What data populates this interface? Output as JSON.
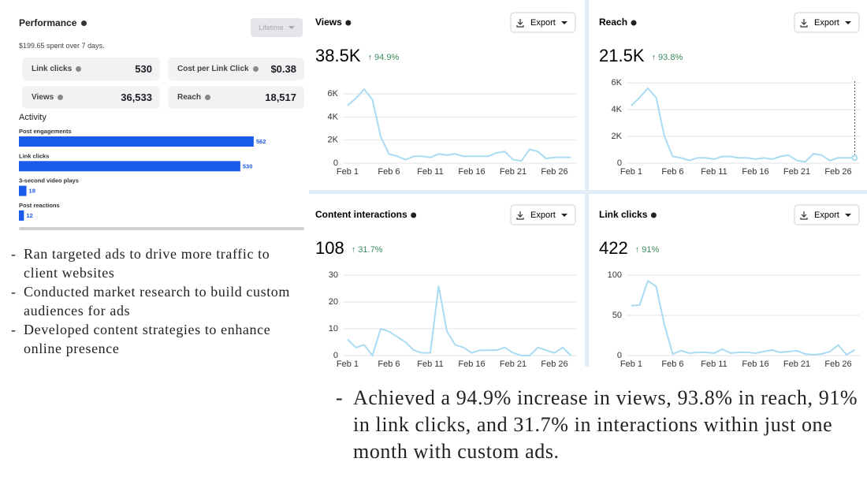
{
  "performance": {
    "title": "Performance",
    "dropdown": "Lifetime",
    "spend": "$199.65 spent over 7 days.",
    "metrics": [
      {
        "label": "Link clicks",
        "value": "530"
      },
      {
        "label": "Cost per Link Click",
        "value": "$0.38"
      },
      {
        "label": "Views",
        "value": "36,533"
      },
      {
        "label": "Reach",
        "value": "18,517"
      }
    ],
    "activity": {
      "title": "Activity",
      "categories": [
        "Post engagements",
        "Link clicks",
        "3-second video plays",
        "Post reactions"
      ],
      "values": [
        562,
        530,
        18,
        12
      ],
      "color": "#1b5bea"
    }
  },
  "chart_data": [
    {
      "type": "line",
      "title": "Views",
      "export": "Export",
      "headline": "38.5K",
      "change": "↑ 94.9%",
      "categories": [
        "Feb 1",
        null,
        null,
        null,
        null,
        "Feb 6",
        null,
        null,
        null,
        null,
        "Feb 11",
        null,
        null,
        null,
        null,
        "Feb 16",
        null,
        null,
        null,
        null,
        "Feb 21",
        null,
        null,
        null,
        null,
        "Feb 26",
        null,
        null
      ],
      "values": [
        5000,
        5600,
        6400,
        5500,
        2300,
        800,
        600,
        300,
        600,
        600,
        500,
        800,
        700,
        800,
        600,
        600,
        600,
        600,
        900,
        1000,
        300,
        200,
        1200,
        1000,
        400,
        500,
        500,
        500
      ],
      "color": "#a9dcf3",
      "ylim": [
        0,
        7300
      ],
      "yticks": [
        0,
        {
          "value": 2000,
          "label": "2K"
        },
        {
          "value": 4000,
          "label": "4K"
        },
        {
          "value": 6000,
          "label": "6K"
        }
      ],
      "grid": true
    },
    {
      "type": "line",
      "title": "Reach",
      "export": "Export",
      "headline": "21.5K",
      "change": "↑ 93.8%",
      "categories": [
        "Feb 1",
        null,
        null,
        null,
        null,
        "Feb 6",
        null,
        null,
        null,
        null,
        "Feb 11",
        null,
        null,
        null,
        null,
        "Feb 16",
        null,
        null,
        null,
        null,
        "Feb 21",
        null,
        null,
        null,
        null,
        "Feb 26",
        null,
        null
      ],
      "values": [
        4300,
        4900,
        5600,
        4900,
        2000,
        500,
        400,
        200,
        400,
        400,
        300,
        500,
        500,
        400,
        400,
        300,
        400,
        300,
        500,
        600,
        200,
        100,
        700,
        600,
        200,
        400,
        400,
        400
      ],
      "color": "#a9dcf3",
      "ylim": [
        0,
        6300
      ],
      "yticks": [
        0,
        {
          "value": 2000,
          "label": "2K"
        },
        {
          "value": 4000,
          "label": "4K"
        },
        {
          "value": 6000,
          "label": "6K"
        }
      ],
      "grid": true
    },
    {
      "type": "line",
      "title": "Content interactions",
      "export": "Export",
      "headline": "108",
      "change": "↑ 31.7%",
      "categories": [
        "Feb 1",
        null,
        null,
        null,
        null,
        "Feb 6",
        null,
        null,
        null,
        null,
        "Feb 11",
        null,
        null,
        null,
        null,
        "Feb 16",
        null,
        null,
        null,
        null,
        "Feb 21",
        null,
        null,
        null,
        null,
        "Feb 26",
        null,
        null
      ],
      "values": [
        6,
        3,
        4,
        0,
        10,
        9,
        7,
        5,
        2,
        1,
        1,
        26,
        9,
        4,
        3,
        1,
        2,
        2,
        2,
        3,
        1,
        0,
        0,
        3,
        2,
        1,
        3,
        0
      ],
      "color": "#a9dcf3",
      "ylim": [
        0,
        31.5
      ],
      "yticks": [
        0,
        10,
        20,
        30
      ],
      "grid": true
    },
    {
      "type": "line",
      "title": "Link clicks",
      "export": "Export",
      "headline": "422",
      "change": "↑ 91%",
      "categories": [
        "Feb 1",
        null,
        null,
        null,
        null,
        "Feb 6",
        null,
        null,
        null,
        null,
        "Feb 11",
        null,
        null,
        null,
        null,
        "Feb 16",
        null,
        null,
        null,
        null,
        "Feb 21",
        null,
        null,
        null,
        null,
        "Feb 26",
        null,
        null
      ],
      "values": [
        62,
        63,
        93,
        86,
        38,
        2,
        6,
        3,
        4,
        4,
        3,
        8,
        3,
        4,
        4,
        3,
        5,
        7,
        4,
        5,
        6,
        2,
        1,
        2,
        5,
        13,
        1,
        7
      ],
      "color": "#a9dcf3",
      "ylim": [
        0,
        105
      ],
      "yticks": [
        0,
        50,
        100
      ],
      "grid": true
    }
  ],
  "notes_left": [
    "Ran targeted ads to drive more traffic to client websites",
    "Conducted market research to build custom audiences for ads",
    "Developed content strategies to enhance online presence"
  ],
  "notes_right": [
    "Achieved a 94.9% increase in views, 93.8% in reach, 91% in link clicks, and 31.7% in interactions within just one month with custom ads."
  ]
}
